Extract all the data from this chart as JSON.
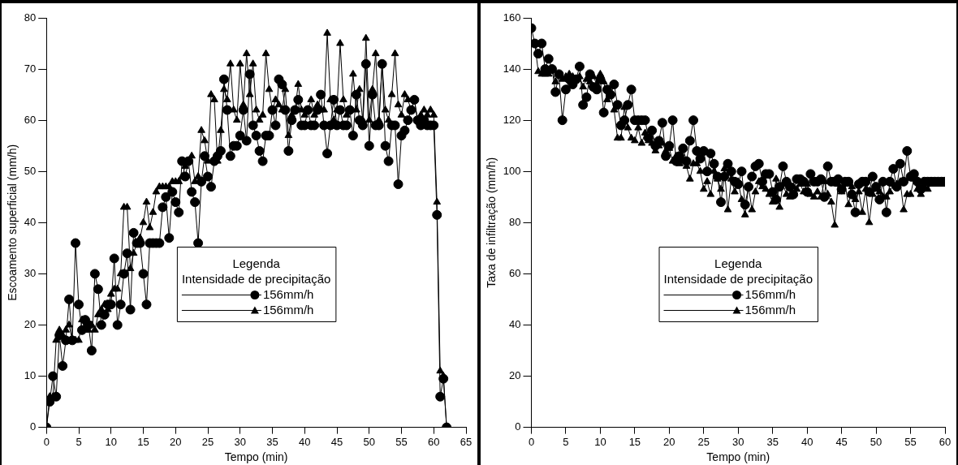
{
  "chart_data": [
    {
      "type": "line",
      "xlabel": "Tempo (min)",
      "ylabel": "Escoamento superficial (mm/h)",
      "legend_title": "Legenda\nIntensidade de precipitação",
      "legend": "center",
      "xlim": [
        0,
        65
      ],
      "xticks": [
        0,
        5,
        10,
        15,
        20,
        25,
        30,
        35,
        40,
        45,
        50,
        55,
        60,
        65
      ],
      "ylim": [
        0,
        80
      ],
      "yticks": [
        0,
        10,
        20,
        30,
        40,
        50,
        60,
        70,
        80
      ],
      "x": [
        0,
        0.5,
        1,
        1.5,
        2,
        2.5,
        3,
        3.5,
        4,
        4.5,
        5,
        5.5,
        6,
        6.5,
        7,
        7.5,
        8,
        8.5,
        9,
        9.5,
        10,
        10.5,
        11,
        11.5,
        12,
        12.5,
        13,
        13.5,
        14,
        14.5,
        15,
        15.5,
        16,
        16.5,
        17,
        17.5,
        18,
        18.5,
        19,
        19.5,
        20,
        20.5,
        21,
        21.5,
        22,
        22.5,
        23,
        23.5,
        24,
        24.5,
        25,
        25.5,
        26,
        26.5,
        27,
        27.5,
        28,
        28.5,
        29,
        29.5,
        30,
        30.5,
        31,
        31.5,
        32,
        32.5,
        33,
        33.5,
        34,
        34.5,
        35,
        35.5,
        36,
        36.5,
        37,
        37.5,
        38,
        38.5,
        39,
        39.5,
        40,
        40.5,
        41,
        41.5,
        42,
        42.5,
        43,
        43.5,
        44,
        44.5,
        45,
        45.5,
        46,
        46.5,
        47,
        47.5,
        48,
        48.5,
        49,
        49.5,
        50,
        50.5,
        51,
        51.5,
        52,
        52.5,
        53,
        53.5,
        54,
        54.5,
        55,
        55.5,
        56,
        56.5,
        57,
        57.5,
        58,
        58.5,
        59,
        59.5,
        60,
        60.5,
        61,
        61.5,
        62
      ],
      "series": [
        {
          "name": "156mm/h",
          "color": "#000000",
          "marker": "circle",
          "values": [
            0,
            5,
            10,
            6,
            18,
            12,
            17,
            25,
            17,
            36,
            24,
            19,
            21,
            20,
            15,
            30,
            27,
            20,
            22,
            24,
            24,
            33,
            20,
            24,
            30,
            34,
            23,
            38,
            36,
            36,
            30,
            24,
            36,
            36,
            36,
            36,
            43,
            45,
            37,
            46,
            44,
            42,
            52,
            49,
            52,
            46,
            44,
            36,
            48,
            53,
            49,
            47,
            52,
            53,
            54,
            68,
            62,
            53,
            55,
            55,
            57,
            62,
            56,
            69,
            59,
            57,
            54,
            52,
            57,
            57,
            62,
            59,
            68,
            67,
            62,
            54,
            60,
            62,
            64,
            59,
            59,
            62,
            59,
            59,
            62,
            65,
            59,
            53.5,
            59,
            64,
            59,
            62,
            59,
            59,
            62,
            57,
            65,
            60,
            59,
            71,
            55,
            65,
            59,
            59,
            71,
            55,
            52,
            59,
            59,
            47.5,
            57,
            58,
            60,
            62,
            64,
            60,
            59,
            60,
            59,
            59,
            59,
            41.5,
            6,
            9.5,
            0
          ]
        },
        {
          "name": "156mm/h",
          "color": "#000000",
          "marker": "triangle",
          "values": [
            0,
            6,
            6,
            17,
            19,
            18,
            19,
            20,
            17,
            17,
            17,
            21,
            19,
            19,
            20,
            19,
            22,
            23,
            24,
            23,
            26,
            27,
            27,
            30,
            43,
            43,
            31,
            34,
            36,
            37,
            40,
            44,
            39,
            42,
            46,
            47,
            47,
            47,
            47,
            48,
            48,
            48,
            49,
            51,
            52,
            53,
            48,
            49,
            58,
            56,
            52,
            65,
            64,
            52,
            58,
            66,
            64,
            71,
            62,
            60,
            71,
            63,
            73,
            65,
            71,
            62,
            60,
            61,
            73,
            66,
            62,
            64,
            63,
            62,
            66,
            57,
            61,
            62,
            67,
            62,
            61,
            62,
            64,
            61,
            63,
            62,
            62,
            77,
            64,
            60,
            62,
            75,
            64,
            61,
            62,
            69,
            62,
            66,
            60,
            76,
            60,
            66,
            73,
            60,
            71,
            62,
            60,
            65,
            73,
            63,
            61,
            65,
            64,
            62,
            64,
            60,
            61,
            62,
            61,
            62,
            61,
            44,
            11,
            10,
            0
          ]
        }
      ]
    },
    {
      "type": "line",
      "xlabel": "Tempo (min)",
      "ylabel": "Taxa de infiltração (mm/h)",
      "legend_title": "Legenda\nIntensidade de precipitação",
      "legend": "center",
      "xlim": [
        0,
        60
      ],
      "xticks": [
        0,
        5,
        10,
        15,
        20,
        25,
        30,
        35,
        40,
        45,
        50,
        55,
        60
      ],
      "ylim": [
        0,
        160
      ],
      "yticks": [
        0,
        20,
        40,
        60,
        80,
        100,
        120,
        140,
        160
      ],
      "x": [
        0,
        0.5,
        1,
        1.5,
        2,
        2.5,
        3,
        3.5,
        4,
        4.5,
        5,
        5.5,
        6,
        6.5,
        7,
        7.5,
        8,
        8.5,
        9,
        9.5,
        10,
        10.5,
        11,
        11.5,
        12,
        12.5,
        13,
        13.5,
        14,
        14.5,
        15,
        15.5,
        16,
        16.5,
        17,
        17.5,
        18,
        18.5,
        19,
        19.5,
        20,
        20.5,
        21,
        21.5,
        22,
        22.5,
        23,
        23.5,
        24,
        24.5,
        25,
        25.5,
        26,
        26.5,
        27,
        27.5,
        28,
        28.5,
        29,
        29.5,
        30,
        30.5,
        31,
        31.5,
        32,
        32.5,
        33,
        33.5,
        34,
        34.5,
        35,
        35.5,
        36,
        36.5,
        37,
        37.5,
        38,
        38.5,
        39,
        39.5,
        40,
        40.5,
        41,
        41.5,
        42,
        42.5,
        43,
        43.5,
        44,
        44.5,
        45,
        45.5,
        46,
        46.5,
        47,
        47.5,
        48,
        48.5,
        49,
        49.5,
        50,
        50.5,
        51,
        51.5,
        52,
        52.5,
        53,
        53.5,
        54,
        54.5,
        55,
        55.5,
        56,
        56.5,
        57,
        57.5,
        58,
        58.5,
        59,
        59.5,
        60
      ],
      "series": [
        {
          "name": "156mm/h",
          "color": "#000000",
          "marker": "circle",
          "values": [
            156,
            150,
            146,
            150,
            140,
            144,
            140,
            131,
            138,
            120,
            132,
            136,
            134,
            136,
            141,
            126,
            129,
            138,
            133,
            132,
            136,
            123,
            132,
            130,
            134,
            126,
            118,
            120,
            126,
            132,
            120,
            120,
            120,
            120,
            113,
            116,
            110,
            112,
            119,
            106,
            110,
            120,
            104,
            106,
            109,
            104,
            112,
            120,
            108,
            105,
            108,
            100,
            107,
            103,
            98,
            88,
            98,
            103,
            100,
            96,
            95,
            100,
            87,
            94,
            98,
            102,
            103,
            96,
            99,
            99,
            92,
            89,
            94,
            102,
            96,
            94,
            91,
            97,
            97,
            96,
            92,
            99,
            96,
            96,
            97,
            90,
            102,
            96,
            96,
            97,
            93,
            96,
            96,
            91,
            84,
            95,
            96,
            96,
            92,
            98,
            94,
            89,
            96,
            84,
            96,
            101,
            94,
            103,
            96,
            108,
            98,
            99,
            96,
            93,
            96,
            96,
            96,
            96,
            96,
            96,
            96
          ]
        },
        {
          "name": "156mm/h",
          "color": "#000000",
          "marker": "triangle",
          "values": [
            null,
            150,
            139,
            138,
            138,
            138,
            140,
            135,
            138,
            136,
            137,
            138,
            137,
            136,
            137,
            133,
            136,
            135,
            137,
            134,
            138,
            135,
            128,
            130,
            124,
            113,
            113,
            125,
            117,
            113,
            112,
            117,
            111,
            115,
            112,
            111,
            108,
            110,
            111,
            108,
            109,
            104,
            106,
            103,
            104,
            102,
            97,
            103,
            103,
            100,
            93,
            96,
            91,
            100,
            97,
            93,
            101,
            85,
            97,
            92,
            96,
            89,
            83,
            94,
            85,
            92,
            96,
            94,
            93,
            91,
            88,
            97,
            86,
            95,
            91,
            90,
            94,
            93,
            95,
            92,
            95,
            91,
            90,
            92,
            90,
            96,
            91,
            88,
            79,
            95,
            92,
            95,
            87,
            94,
            89,
            92,
            84,
            93,
            80,
            91,
            93,
            92,
            90,
            90,
            92,
            95,
            95,
            96,
            85,
            91,
            91,
            97,
            93,
            91,
            94,
            93,
            95,
            95,
            95,
            95,
            95
          ]
        }
      ]
    }
  ]
}
